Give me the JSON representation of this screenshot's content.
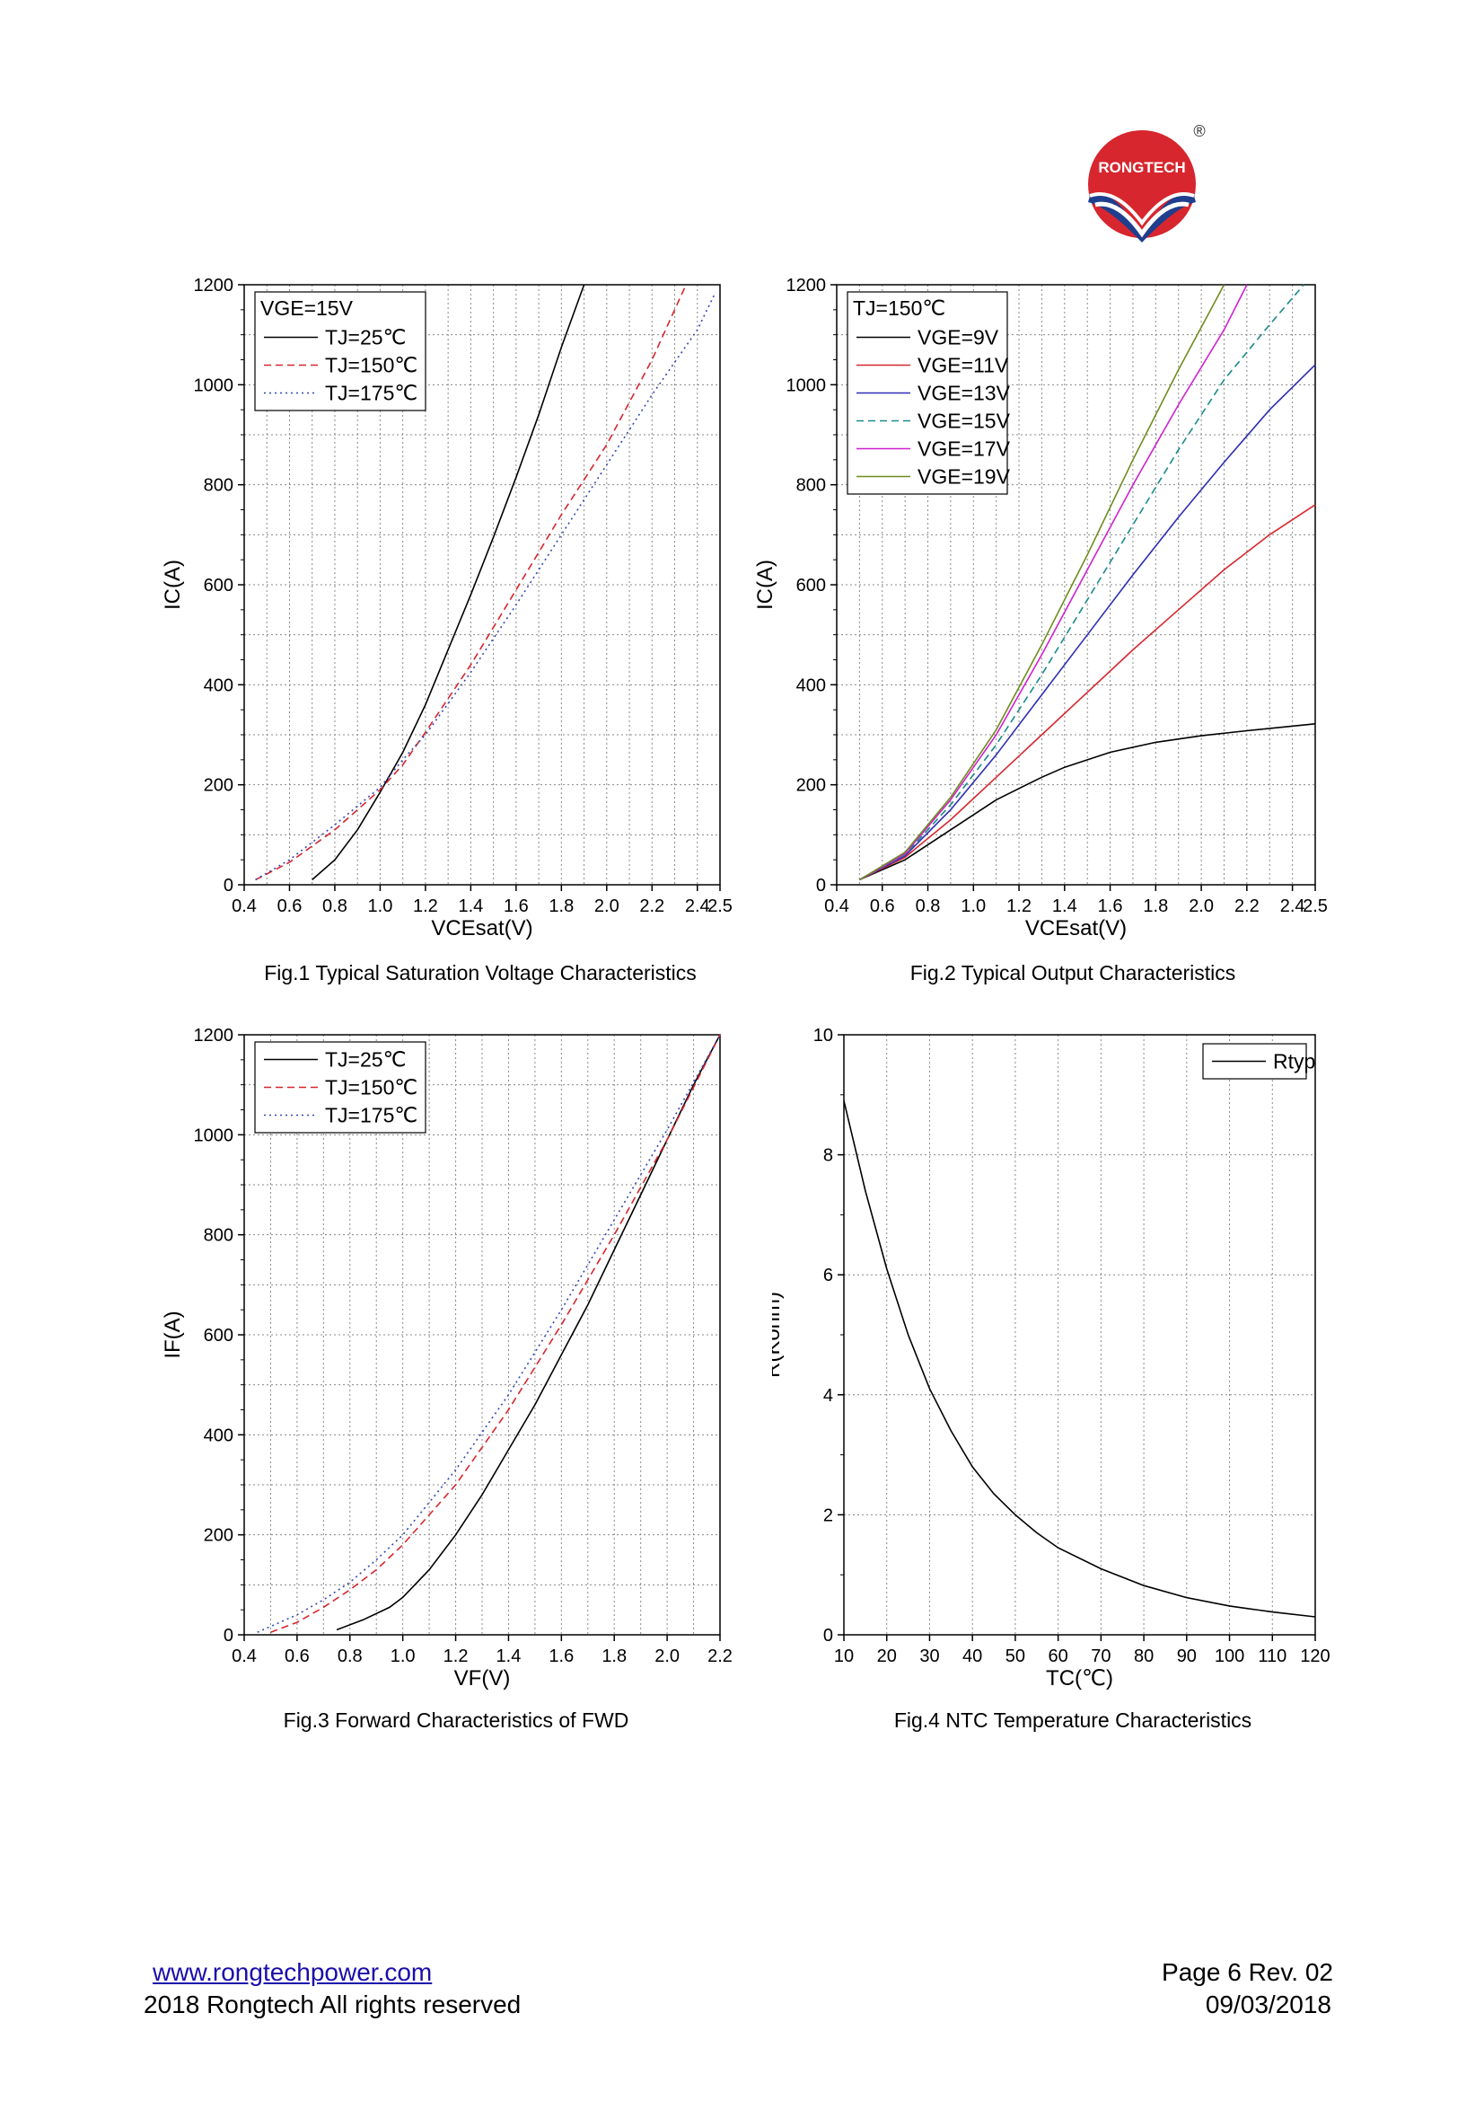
{
  "brand": {
    "name": "RONGTECH",
    "registered": "®",
    "colors": {
      "red": "#d7262e",
      "blue": "#1f3e8e"
    }
  },
  "footer": {
    "url": "www.rongtechpower.com",
    "copyright": "2018 Rongtech All rights reserved",
    "page": "Page 6  Rev. 02",
    "date": "09/03/2018"
  },
  "captions": {
    "fig1": "Fig.1 Typical Saturation Voltage Characteristics",
    "fig2": "Fig.2 Typical Output Characteristics",
    "fig3": "Fig.3 Forward Characteristics of FWD",
    "fig4": "Fig.4 NTC Temperature Characteristics"
  },
  "chart_data": [
    {
      "id": "c1",
      "type": "line",
      "title": "Fig.1 Typical Saturation Voltage Characteristics",
      "xlabel": "VCEsat(V)",
      "ylabel": "IC(A)",
      "xlim": [
        0.4,
        2.5
      ],
      "ylim": [
        0,
        1200
      ],
      "xticks": [
        0.4,
        0.6,
        0.8,
        1.0,
        1.2,
        1.4,
        1.6,
        1.8,
        2.0,
        2.2,
        2.4,
        2.5
      ],
      "xtick_labels": [
        "0.4",
        "0.6",
        "0.8",
        "1.0",
        "1.2",
        "1.4",
        "1.6",
        "1.8",
        "2.0",
        "2.2",
        "2.4",
        "2.5"
      ],
      "yticks": [
        0,
        200,
        400,
        600,
        800,
        1000,
        1200
      ],
      "legend_title": "VGE=15V",
      "legend_position": "top-left",
      "series": [
        {
          "name": "TJ=25℃",
          "color": "#000000",
          "style": "solid",
          "x": [
            0.7,
            0.8,
            0.9,
            1.0,
            1.1,
            1.2,
            1.3,
            1.4,
            1.5,
            1.6,
            1.7,
            1.8,
            1.9
          ],
          "y": [
            10,
            50,
            110,
            185,
            265,
            360,
            470,
            580,
            695,
            815,
            940,
            1075,
            1200
          ]
        },
        {
          "name": "TJ=150℃",
          "color": "#d7262e",
          "style": "dash",
          "x": [
            0.45,
            0.6,
            0.8,
            1.0,
            1.1,
            1.2,
            1.4,
            1.6,
            1.8,
            2.0,
            2.2,
            2.35
          ],
          "y": [
            10,
            45,
            110,
            190,
            240,
            305,
            440,
            590,
            740,
            880,
            1050,
            1200
          ]
        },
        {
          "name": "TJ=175℃",
          "color": "#3246b4",
          "style": "dot",
          "x": [
            0.45,
            0.6,
            0.8,
            1.0,
            1.1,
            1.2,
            1.4,
            1.6,
            1.8,
            2.0,
            2.2,
            2.4,
            2.48
          ],
          "y": [
            10,
            50,
            120,
            195,
            250,
            300,
            425,
            560,
            700,
            840,
            980,
            1110,
            1185
          ]
        }
      ]
    },
    {
      "id": "c2",
      "type": "line",
      "title": "Fig.2 Typical Output Characteristics",
      "xlabel": "VCEsat(V)",
      "ylabel": "IC(A)",
      "xlim": [
        0.4,
        2.5
      ],
      "ylim": [
        0,
        1200
      ],
      "xticks": [
        0.4,
        0.6,
        0.8,
        1.0,
        1.2,
        1.4,
        1.6,
        1.8,
        2.0,
        2.2,
        2.4,
        2.5
      ],
      "xtick_labels": [
        "0.4",
        "0.6",
        "0.8",
        "1.0",
        "1.2",
        "1.4",
        "1.6",
        "1.8",
        "2.0",
        "2.2",
        "2.4",
        "2.5"
      ],
      "yticks": [
        0,
        200,
        400,
        600,
        800,
        1000,
        1200
      ],
      "legend_title": "TJ=150℃",
      "legend_position": "top-left",
      "series": [
        {
          "name": "VGE=9V",
          "color": "#000000",
          "style": "solid",
          "x": [
            0.5,
            0.7,
            0.9,
            1.1,
            1.3,
            1.4,
            1.6,
            1.8,
            2.0,
            2.2,
            2.5
          ],
          "y": [
            10,
            50,
            110,
            170,
            215,
            235,
            265,
            285,
            298,
            308,
            322
          ]
        },
        {
          "name": "VGE=11V",
          "color": "#d7262e",
          "style": "solid",
          "x": [
            0.5,
            0.7,
            0.9,
            1.1,
            1.3,
            1.5,
            1.7,
            1.9,
            2.1,
            2.3,
            2.5
          ],
          "y": [
            10,
            55,
            130,
            215,
            300,
            385,
            470,
            550,
            630,
            700,
            760
          ]
        },
        {
          "name": "VGE=13V",
          "color": "#2d2db4",
          "style": "solid",
          "x": [
            0.5,
            0.7,
            0.9,
            1.1,
            1.3,
            1.5,
            1.7,
            1.9,
            2.1,
            2.3,
            2.5
          ],
          "y": [
            10,
            58,
            150,
            260,
            380,
            500,
            620,
            735,
            845,
            950,
            1040
          ]
        },
        {
          "name": "VGE=15V",
          "color": "#1a8a8a",
          "style": "dash",
          "x": [
            0.5,
            0.7,
            0.9,
            1.1,
            1.3,
            1.5,
            1.7,
            1.9,
            2.1,
            2.3,
            2.45
          ],
          "y": [
            10,
            60,
            160,
            280,
            420,
            570,
            720,
            870,
            1010,
            1120,
            1200
          ]
        },
        {
          "name": "VGE=17V",
          "color": "#d020d0",
          "style": "solid",
          "x": [
            0.5,
            0.7,
            0.9,
            1.1,
            1.3,
            1.5,
            1.7,
            1.9,
            2.1,
            2.2
          ],
          "y": [
            10,
            62,
            170,
            300,
            460,
            630,
            800,
            960,
            1110,
            1200
          ]
        },
        {
          "name": "VGE=19V",
          "color": "#6e8c1e",
          "style": "solid",
          "x": [
            0.5,
            0.7,
            0.9,
            1.1,
            1.3,
            1.5,
            1.7,
            1.9,
            2.1
          ],
          "y": [
            10,
            65,
            175,
            310,
            480,
            660,
            850,
            1030,
            1200
          ]
        }
      ]
    },
    {
      "id": "c3",
      "type": "line",
      "title": "Fig.3 Forward Characteristics of FWD",
      "xlabel": "VF(V)",
      "ylabel": "IF(A)",
      "xlim": [
        0.4,
        2.2
      ],
      "ylim": [
        0,
        1200
      ],
      "xticks": [
        0.4,
        0.6,
        0.8,
        1.0,
        1.2,
        1.4,
        1.6,
        1.8,
        2.0,
        2.2
      ],
      "xtick_labels": [
        "0.4",
        "0.6",
        "0.8",
        "1.0",
        "1.2",
        "1.4",
        "1.6",
        "1.8",
        "2.0",
        "2.2"
      ],
      "yticks": [
        0,
        200,
        400,
        600,
        800,
        1000,
        1200
      ],
      "legend_title": "",
      "legend_position": "top-left",
      "series": [
        {
          "name": "TJ=25℃",
          "color": "#000000",
          "style": "solid",
          "x": [
            0.75,
            0.85,
            0.95,
            1.0,
            1.1,
            1.2,
            1.3,
            1.4,
            1.5,
            1.6,
            1.7,
            1.8,
            1.9,
            2.0,
            2.1,
            2.2
          ],
          "y": [
            10,
            30,
            55,
            75,
            130,
            200,
            280,
            370,
            460,
            560,
            660,
            770,
            880,
            990,
            1100,
            1200
          ]
        },
        {
          "name": "TJ=150℃",
          "color": "#d7262e",
          "style": "dash",
          "x": [
            0.5,
            0.6,
            0.7,
            0.8,
            0.9,
            1.0,
            1.2,
            1.4,
            1.6,
            1.8,
            2.0,
            2.2
          ],
          "y": [
            5,
            25,
            55,
            90,
            130,
            180,
            300,
            450,
            620,
            800,
            990,
            1200
          ]
        },
        {
          "name": "TJ=175℃",
          "color": "#3246b4",
          "style": "dot",
          "x": [
            0.45,
            0.6,
            0.7,
            0.8,
            0.9,
            1.0,
            1.2,
            1.4,
            1.6,
            1.8,
            2.0,
            2.2
          ],
          "y": [
            5,
            40,
            70,
            105,
            150,
            200,
            330,
            480,
            650,
            830,
            1010,
            1200
          ]
        }
      ]
    },
    {
      "id": "c4",
      "type": "line",
      "title": "Fig.4 NTC Temperature Characteristics",
      "xlabel": "TC(℃)",
      "ylabel": "R(Kohm)",
      "xlim": [
        10,
        120
      ],
      "ylim": [
        0,
        10
      ],
      "xticks": [
        10,
        20,
        30,
        40,
        50,
        60,
        70,
        80,
        90,
        100,
        110,
        120
      ],
      "xtick_labels": [
        "10",
        "20",
        "30",
        "40",
        "50",
        "60",
        "70",
        "80",
        "90",
        "100",
        "110",
        "120"
      ],
      "yticks": [
        0,
        2,
        4,
        6,
        8,
        10
      ],
      "legend_title": "",
      "legend_position": "top-right",
      "series": [
        {
          "name": "Rtyp",
          "color": "#000000",
          "style": "solid",
          "x": [
            10,
            15,
            20,
            25,
            30,
            35,
            40,
            45,
            50,
            55,
            60,
            70,
            80,
            90,
            100,
            110,
            120
          ],
          "y": [
            8.9,
            7.4,
            6.1,
            5.0,
            4.1,
            3.4,
            2.8,
            2.35,
            2.0,
            1.7,
            1.45,
            1.1,
            0.82,
            0.62,
            0.48,
            0.38,
            0.3
          ]
        }
      ]
    }
  ]
}
